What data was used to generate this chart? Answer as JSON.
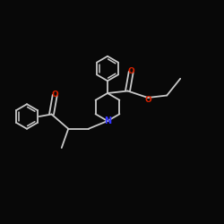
{
  "bg_color": "#080808",
  "bond_color": "#c8c8c8",
  "N_color": "#3333ff",
  "O_color": "#dd2200",
  "bond_width": 1.3,
  "figsize": [
    2.5,
    2.5
  ],
  "dpi": 100,
  "xlim": [
    -4.5,
    5.5
  ],
  "ylim": [
    -4.0,
    5.0
  ]
}
